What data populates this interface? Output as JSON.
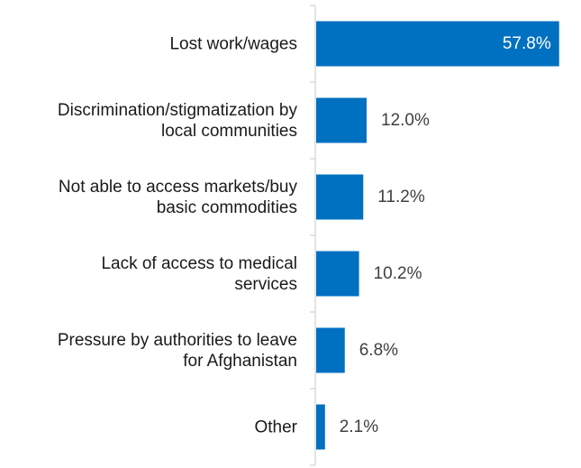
{
  "chart_data": {
    "type": "bar",
    "orientation": "horizontal",
    "categories": [
      [
        "Lost work/wages"
      ],
      [
        "Discrimination/stigmatization by",
        "local communities"
      ],
      [
        "Not able to access markets/buy",
        "basic commodities"
      ],
      [
        "Lack of access to medical",
        "services"
      ],
      [
        "Pressure by authorities to leave",
        "for Afghanistan"
      ],
      [
        "Other"
      ]
    ],
    "values": [
      57.8,
      12.0,
      11.2,
      10.2,
      6.8,
      2.1
    ],
    "value_labels": [
      "57.8%",
      "12.0%",
      "11.2%",
      "10.2%",
      "6.8%",
      "2.1%"
    ],
    "xlim": [
      0,
      60
    ],
    "grid": false,
    "legend": "none",
    "bar_color": "#0070C0",
    "label_color_inside": "#ffffff",
    "label_color_outside": "#404040"
  }
}
